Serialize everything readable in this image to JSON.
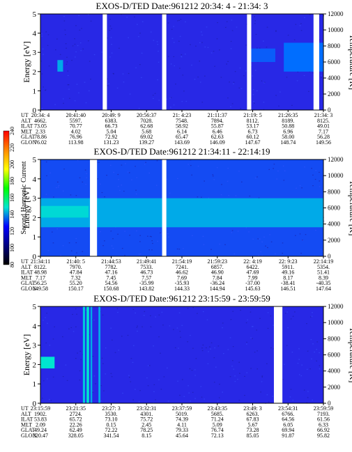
{
  "colorbar": {
    "label": "Second Harmonic Current",
    "ticks": [
      "240",
      "220",
      "200",
      "180",
      "160",
      "140",
      "120",
      "100",
      "80"
    ],
    "stops": [
      "#ff0000",
      "#ff8800",
      "#ffff00",
      "#00ff00",
      "#00e5d0",
      "#0000ff",
      "#000080",
      "#000000"
    ]
  },
  "chart_data": [
    {
      "type": "heatmap",
      "title": "EXOS-D/TED   Date:961212  20:34: 4 - 21:34: 3",
      "ylabel": "Energy [eV]",
      "ylabel_right": "Temperature [K]",
      "ylim": [
        0,
        5
      ],
      "yticks": [
        "0",
        "1",
        "2",
        "3",
        "4",
        "5"
      ],
      "ylim_right": [
        0,
        12000
      ],
      "yticks_right": [
        "0",
        "2000",
        "4000",
        "6000",
        "8000",
        "10000",
        "12000"
      ],
      "row_labels": [
        "UT",
        "ALT",
        "ILAT",
        "MLT",
        "GLAT",
        "GLON"
      ],
      "columns": [
        [
          "20:34: 4",
          "4662.",
          "73.05",
          "2.33",
          "78.86",
          "76.02"
        ],
        [
          "20:41:40",
          "5597.",
          "70.77",
          "4.02",
          "76.96",
          "113.98"
        ],
        [
          "20:49: 9",
          "6383.",
          "66.73",
          "5.04",
          "72.92",
          "131.23"
        ],
        [
          "20:56:37",
          "7028.",
          "62.68",
          "5.68",
          "69.02",
          "139.27"
        ],
        [
          "21: 4:23",
          "7548.",
          "58.92",
          "6.14",
          "65.47",
          "143.69"
        ],
        [
          "21:11:37",
          "7894.",
          "55.87",
          "6.46",
          "62.63",
          "146.09"
        ],
        [
          "21:19: 5",
          "8112.",
          "53.17",
          "6.73",
          "60.12",
          "147.67"
        ],
        [
          "21:26:35",
          "8189.",
          "50.88",
          "6.96",
          "58.00",
          "148.74"
        ],
        [
          "21:34: 3",
          "8125.",
          "49.01",
          "7.17",
          "56.28",
          "149.56"
        ]
      ],
      "data_gaps": [
        [
          0.22,
          0.235
        ],
        [
          0.43,
          0.445
        ],
        [
          0.73,
          0.745
        ],
        [
          0.965,
          0.985
        ]
      ],
      "background_level": 120,
      "features": [
        {
          "x": [
            0.06,
            0.08
          ],
          "y": [
            2.0,
            2.6
          ],
          "level": 150
        },
        {
          "x": [
            0.735,
            0.83
          ],
          "y": [
            2.5,
            3.2
          ],
          "level": 135
        },
        {
          "x": [
            0.86,
            1.0
          ],
          "y": [
            2.0,
            3.5
          ],
          "level": 140
        }
      ]
    },
    {
      "type": "heatmap",
      "title": "EXOS-D/TED   Date:961212  21:34:11 - 22:14:19",
      "ylabel": "Energy [eV]",
      "ylabel_right": "Temperature [K]",
      "ylim": [
        0,
        5
      ],
      "yticks": [
        "0",
        "1",
        "2",
        "3",
        "4",
        "5"
      ],
      "ylim_right": [
        0,
        12000
      ],
      "yticks_right": [
        "0",
        "2000",
        "4000",
        "6000",
        "8000",
        "10000",
        "12000"
      ],
      "row_labels": [
        "UT",
        "ALT",
        "ILAT",
        "MLT",
        "GLAT",
        "GLON"
      ],
      "columns": [
        [
          "21:34:11",
          "8122.",
          "48.98",
          "7.17",
          "56.25",
          "149.58"
        ],
        [
          "21:40: 5",
          "7970.",
          "47.84",
          "7.32",
          "55.20",
          "150.17"
        ],
        [
          "21:44:53",
          "7782.",
          "47.16",
          "7.45",
          "54.56",
          "150.68"
        ],
        [
          "21:49:41",
          "7533.",
          "46.73",
          "7.57",
          "-35.99",
          "143.82"
        ],
        [
          "21:54:19",
          "7241.",
          "46.62",
          "7.69",
          "-35.93",
          "144.33"
        ],
        [
          "21:59:23",
          "6857.",
          "46.90",
          "7.84",
          "-36.24",
          "144.94"
        ],
        [
          "22: 4:19",
          "6422.",
          "47.69",
          "7.99",
          "-37.00",
          "145.63"
        ],
        [
          "22: 9:23",
          "5911.",
          "49.16",
          "8.17",
          "-38.41",
          "146.51"
        ],
        [
          "22:14:19",
          "5354.",
          "51.41",
          "8.39",
          "-40.35",
          "147.64"
        ]
      ],
      "data_gaps": [
        [
          0.175,
          0.2
        ],
        [
          0.43,
          0.445
        ]
      ],
      "background_level": 130,
      "features": [
        {
          "x": [
            0.0,
            1.0
          ],
          "y": [
            1.5,
            3.0
          ],
          "level": 150
        },
        {
          "x": [
            0.0,
            0.17
          ],
          "y": [
            2.0,
            2.6
          ],
          "level": 158
        }
      ]
    },
    {
      "type": "heatmap",
      "title": "EXOS-D/TED   Date:961212  23:15:59 - 23:59:59",
      "ylabel": "Energy [eV]",
      "ylabel_right": "Temperature [K]",
      "ylim": [
        0,
        5
      ],
      "yticks": [
        "0",
        "1",
        "2",
        "3",
        "4",
        "5"
      ],
      "ylim_right": [
        0,
        12000
      ],
      "yticks_right": [
        "0",
        "2000",
        "4000",
        "6000",
        "8000",
        "10000",
        "12000"
      ],
      "row_labels": [
        "UT",
        "ALT",
        "ILAT",
        "MLT",
        "GLAT",
        "GLON"
      ],
      "columns": [
        [
          "23:15:59",
          "1902.",
          "53.83",
          "2.09",
          "49.24",
          "320.47"
        ],
        [
          "23:21:35",
          "2724.",
          "65.72",
          "22.26",
          "62.49",
          "328.05"
        ],
        [
          "23:27: 3",
          "3530.",
          "73.10",
          "0.15",
          "72.22",
          "341.54"
        ],
        [
          "23:32:31",
          "4301.",
          "75.72",
          "2.45",
          "78.25",
          "8.15"
        ],
        [
          "23:37:59",
          "5019.",
          "74.39",
          "4.11",
          "79.33",
          "45.64"
        ],
        [
          "23:43:35",
          "5685.",
          "71.24",
          "5.09",
          "76.74",
          "72.13"
        ],
        [
          "23:49: 3",
          "6263.",
          "67.83",
          "5.67",
          "73.28",
          "85.05"
        ],
        [
          "23:54:31",
          "6766.",
          "64.56",
          "6.05",
          "69.94",
          "91.87"
        ],
        [
          "23:59:59",
          "7193.",
          "61.56",
          "6.33",
          "66.92",
          "95.82"
        ]
      ],
      "data_gaps": [
        [
          0.825,
          0.855
        ]
      ],
      "background_level": 120,
      "features": [
        {
          "x": [
            0.0,
            0.05
          ],
          "y": [
            1.8,
            2.4
          ],
          "level": 160
        },
        {
          "x": [
            0.15,
            0.158
          ],
          "y": [
            0.0,
            5.0
          ],
          "level": 155
        },
        {
          "x": [
            0.163,
            0.172
          ],
          "y": [
            0.0,
            5.0
          ],
          "level": 160
        },
        {
          "x": [
            0.177,
            0.183
          ],
          "y": [
            0.0,
            5.0
          ],
          "level": 150
        },
        {
          "x": [
            0.205,
            0.212
          ],
          "y": [
            0.0,
            5.0
          ],
          "level": 150
        }
      ]
    }
  ]
}
